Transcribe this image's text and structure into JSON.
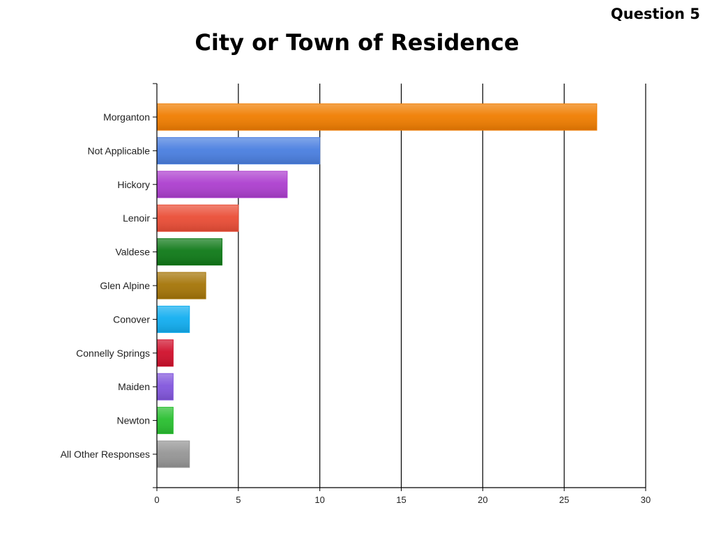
{
  "header": {
    "question": "Question 5"
  },
  "chart_data": {
    "type": "bar",
    "orientation": "horizontal",
    "title": "City or Town of Residence",
    "xlabel": "",
    "ylabel": "",
    "xlim": [
      0,
      30
    ],
    "xticks": [
      0,
      5,
      10,
      15,
      20,
      25,
      30
    ],
    "grid": true,
    "legend": "none",
    "categories": [
      "Morganton",
      "Not Applicable",
      "Hickory",
      "Lenoir",
      "Valdese",
      "Glen Alpine",
      "Conover",
      "Connelly Springs",
      "Maiden",
      "Newton",
      "All Other Responses"
    ],
    "values": [
      27,
      10,
      8,
      5,
      4,
      3,
      2,
      1,
      1,
      1,
      2
    ],
    "colors": [
      "#f07d00",
      "#4a7fe0",
      "#ad3fcf",
      "#ea4d36",
      "#0f7a18",
      "#a57508",
      "#12aef0",
      "#d0102c",
      "#8256dd",
      "#29bf30",
      "#969696"
    ]
  }
}
